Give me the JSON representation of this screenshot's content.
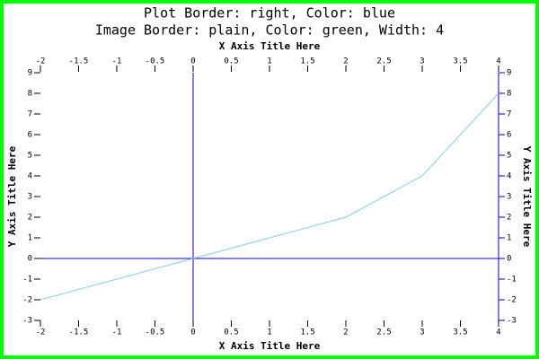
{
  "chart_data": {
    "type": "line",
    "title": "Plot Border: right, Color: blue",
    "subtitle": "Image Border: plain, Color: green, Width: 4",
    "x_label": "X Axis Title Here",
    "y_label": "Y Axis Title Here",
    "x": [
      -2,
      -1,
      0,
      1,
      2,
      3,
      4
    ],
    "series": [
      {
        "name": "",
        "color": "#87ceeb",
        "values": [
          -2,
          -1,
          0,
          1,
          2,
          4,
          8
        ]
      }
    ],
    "xlim": [
      -2,
      4
    ],
    "xticks": [
      -2,
      -1.5,
      -1,
      -0.5,
      0,
      0.5,
      1,
      1.5,
      2,
      2.5,
      3,
      3.5,
      4
    ],
    "ylim": [
      -3,
      9
    ],
    "yticks": [
      -3,
      -2,
      -1,
      0,
      1,
      2,
      3,
      4,
      5,
      6,
      7,
      8,
      9
    ],
    "plot_border_color": "#0000cd",
    "image_border_color": "#00ff00"
  }
}
